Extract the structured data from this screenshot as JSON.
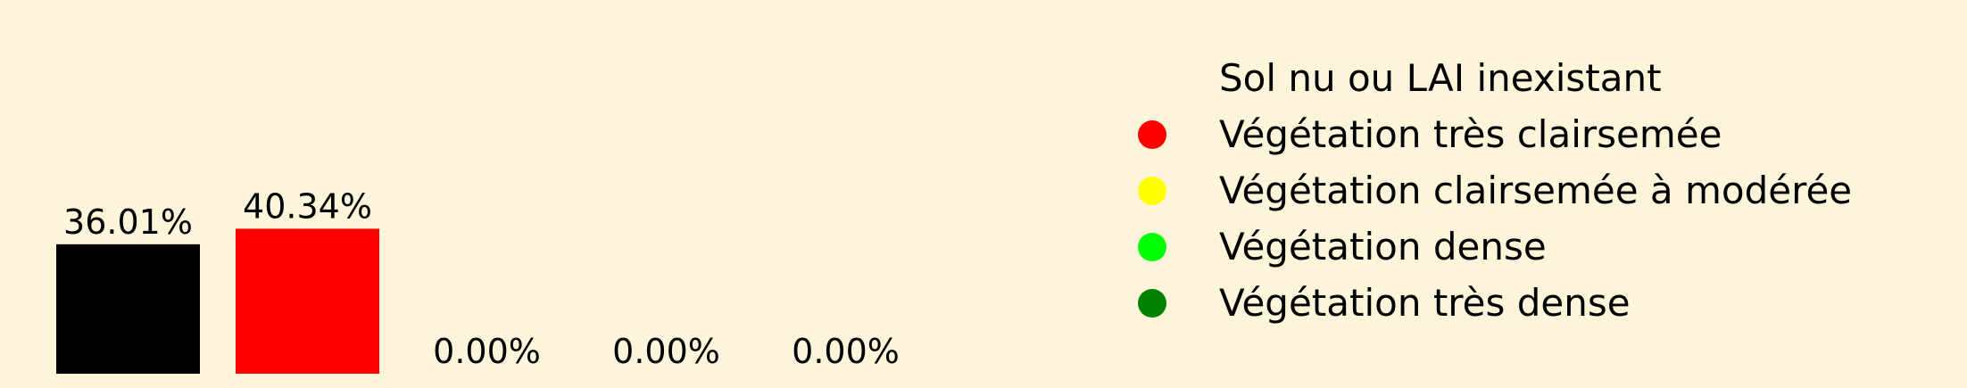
{
  "chart_data": {
    "type": "bar",
    "categories": [
      "Sol nu ou LAI inexistant",
      "Végétation très clairsemée",
      "Végétation clairsemée à modérée",
      "Végétation dense",
      "Végétation très dense"
    ],
    "values": [
      36.01,
      40.34,
      0.0,
      0.0,
      0.0
    ],
    "value_labels": [
      "36.01%",
      "40.34%",
      "0.00%",
      "0.00%",
      "0.00%"
    ],
    "colors": [
      "#000000",
      "#ff0000",
      "#ffff00",
      "#00ff00",
      "#008000"
    ],
    "legend": {
      "placement": "right",
      "entries": [
        {
          "label": "Sol nu ou LAI inexistant",
          "color": "#000000"
        },
        {
          "label": "Végétation très clairsemée",
          "color": "#ff0000"
        },
        {
          "label": "Végétation clairsemée à modérée",
          "color": "#ffff00"
        },
        {
          "label": "Végétation dense",
          "color": "#00ff00"
        },
        {
          "label": "Végétation très dense",
          "color": "#008000"
        }
      ]
    },
    "title": "",
    "xlabel": "",
    "ylabel": "",
    "grid": false,
    "axes_visible": false,
    "ylim": [
      0,
      100
    ]
  }
}
